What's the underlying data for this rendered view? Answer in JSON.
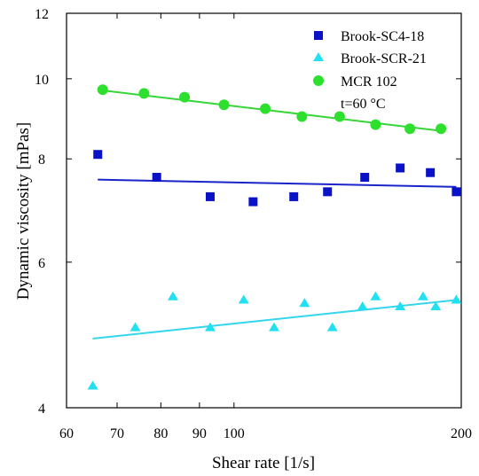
{
  "chart_data": {
    "type": "scatter",
    "x_scale": "log",
    "y_scale": "log",
    "xlim": [
      60,
      200
    ],
    "ylim": [
      4,
      12
    ],
    "xlabel": "Shear rate [1/s]",
    "ylabel": "Dynamic viscosity [mPas]",
    "x_ticks": [
      60,
      70,
      80,
      90,
      100,
      200
    ],
    "x_tick_labels": [
      "60",
      "70",
      "80",
      "90",
      "100",
      "200"
    ],
    "y_ticks": [
      4,
      6,
      8,
      10,
      12
    ],
    "y_tick_labels": [
      "4",
      "6",
      "8",
      "10",
      "12"
    ],
    "legend_position": "top-right",
    "annotation": "t=60 °C",
    "series": [
      {
        "name": "Brook-SC4-18",
        "marker": "square",
        "color": "#0a12c8",
        "line_color": "#1a24c8",
        "x": [
          66,
          79,
          93,
          106,
          120,
          133,
          149,
          166,
          182,
          197
        ],
        "y": [
          8.1,
          7.6,
          7.2,
          7.1,
          7.2,
          7.3,
          7.6,
          7.8,
          7.7,
          7.3
        ],
        "fit": {
          "x": [
            66,
            197
          ],
          "y": [
            7.55,
            7.4
          ]
        }
      },
      {
        "name": "Brook-SCR-21",
        "marker": "triangle",
        "color": "#22e0f0",
        "line_color": "#33d6ee",
        "x": [
          65,
          74,
          83,
          93,
          103,
          113,
          124,
          135,
          148,
          154,
          166,
          178,
          185,
          197
        ],
        "y": [
          4.25,
          5.0,
          5.45,
          5.0,
          5.4,
          5.0,
          5.35,
          5.0,
          5.3,
          5.45,
          5.3,
          5.45,
          5.3,
          5.4
        ],
        "fit": {
          "x": [
            65,
            197
          ],
          "y": [
            4.85,
            5.4
          ]
        }
      },
      {
        "name": "MCR 102",
        "marker": "circle",
        "color": "#2ee02e",
        "line_color": "#36d636",
        "x": [
          67,
          76,
          86,
          97,
          110,
          123,
          138,
          154,
          171,
          188
        ],
        "y": [
          9.7,
          9.6,
          9.5,
          9.3,
          9.2,
          9.0,
          9.0,
          8.8,
          8.7,
          8.7
        ],
        "fit": {
          "x": [
            67,
            188
          ],
          "y": [
            9.68,
            8.65
          ]
        }
      }
    ]
  }
}
